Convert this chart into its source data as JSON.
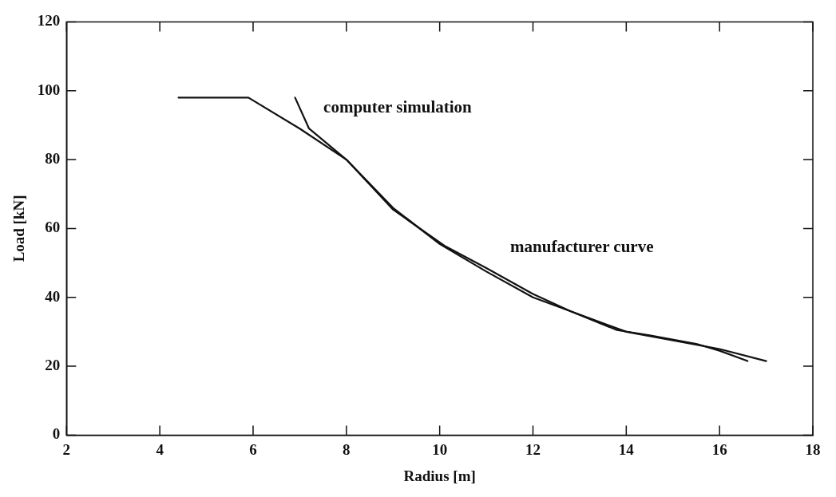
{
  "chart_data": {
    "type": "line",
    "xlabel": "Radius [m]",
    "ylabel": "Load [kN]",
    "xlim": [
      2,
      18
    ],
    "xticks": [
      2,
      4,
      6,
      8,
      10,
      12,
      14,
      16,
      18
    ],
    "ylim": [
      0,
      120
    ],
    "yticks": [
      0,
      20,
      40,
      60,
      80,
      100,
      120
    ],
    "grid": false,
    "legend": false,
    "marker": "none",
    "line_style": "solid",
    "series": [
      {
        "name": "computer simulation",
        "color": "#111111",
        "x": [
          6.9,
          7.2,
          8,
          9,
          10.1,
          11,
          12,
          12.8,
          13.8,
          14.5,
          15.5,
          16,
          16.6
        ],
        "values": [
          98,
          89,
          80,
          65.5,
          55,
          48.5,
          41,
          36,
          30.5,
          29,
          26.5,
          24.5,
          21.5
        ]
      },
      {
        "name": "manufacturer curve",
        "color": "#111111",
        "x": [
          4.4,
          5.9,
          7,
          8,
          9,
          10,
          11,
          12,
          12.8,
          14,
          15,
          16,
          17
        ],
        "values": [
          98,
          98,
          89,
          80,
          66,
          55.5,
          47.5,
          40,
          36,
          30,
          27.5,
          25,
          21.5
        ]
      }
    ]
  }
}
